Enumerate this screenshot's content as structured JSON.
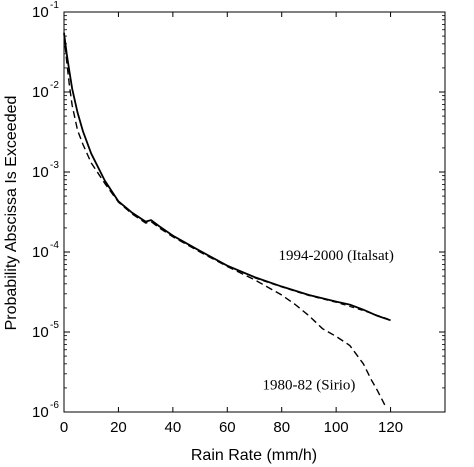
{
  "chart_data": {
    "type": "line",
    "title": "",
    "xlabel": "Rain Rate (mm/h)",
    "ylabel": "Probability Abscissa Is Exceeded",
    "xlim": [
      0,
      140
    ],
    "ylim": [
      1e-06,
      0.1
    ],
    "y_scale": "log",
    "grid": false,
    "legend": "none",
    "x_ticks": [
      "0",
      "20",
      "40",
      "60",
      "80",
      "100",
      "120"
    ],
    "y_ticks": [
      {
        "base": "10",
        "exp": "-1"
      },
      {
        "base": "10",
        "exp": "-2"
      },
      {
        "base": "10",
        "exp": "-3"
      },
      {
        "base": "10",
        "exp": "-4"
      },
      {
        "base": "10",
        "exp": "-5"
      },
      {
        "base": "10",
        "exp": "-6"
      }
    ],
    "series": [
      {
        "style": "solid",
        "x": [
          0,
          1,
          2,
          3,
          5,
          7,
          10,
          15,
          20,
          25,
          30,
          32,
          35,
          40,
          50,
          60,
          70,
          80,
          90,
          100,
          105,
          110,
          115,
          120
        ],
        "values": [
          0.055,
          0.03,
          0.018,
          0.011,
          0.0055,
          0.0032,
          0.0017,
          0.00078,
          0.00043,
          0.00031,
          0.00024,
          0.00025,
          0.00021,
          0.00016,
          0.000103,
          6.75e-05,
          4.85e-05,
          3.7e-05,
          2.9e-05,
          2.4e-05,
          2.2e-05,
          1.9e-05,
          1.6e-05,
          1.4e-05
        ]
      },
      {
        "style": "dashed",
        "x": [
          0,
          1,
          2,
          3,
          5,
          7,
          10,
          15,
          20,
          25,
          30,
          32,
          35,
          40,
          50,
          60,
          70,
          80,
          85,
          90,
          95,
          100,
          105,
          110,
          113,
          115,
          117,
          118
        ],
        "values": [
          0.052,
          0.024,
          0.012,
          0.0068,
          0.0033,
          0.0022,
          0.0013,
          0.00072,
          0.00042,
          0.0003,
          0.00023,
          0.00024,
          0.0002,
          0.000155,
          0.0001,
          6.6e-05,
          4.5e-05,
          2.9e-05,
          2.2e-05,
          1.6e-05,
          1.1e-05,
          8.8e-06,
          6.8e-06,
          4e-06,
          2.5e-06,
          1.9e-06,
          1.4e-06,
          1.2e-06
        ]
      },
      {
        "style": "dashed-thin",
        "x": [
          70,
          80,
          90,
          100,
          110,
          120
        ],
        "values": [
          4.75e-05,
          3.65e-05,
          2.85e-05,
          2.35e-05,
          1.85e-05,
          1.42e-05
        ]
      }
    ],
    "annotations": [
      {
        "text": "1994-2000 (Italsat)",
        "x": 100,
        "y": 8e-05
      },
      {
        "text": "1980-82 (Sirio)",
        "x": 90,
        "y": 1.9e-06
      }
    ]
  }
}
